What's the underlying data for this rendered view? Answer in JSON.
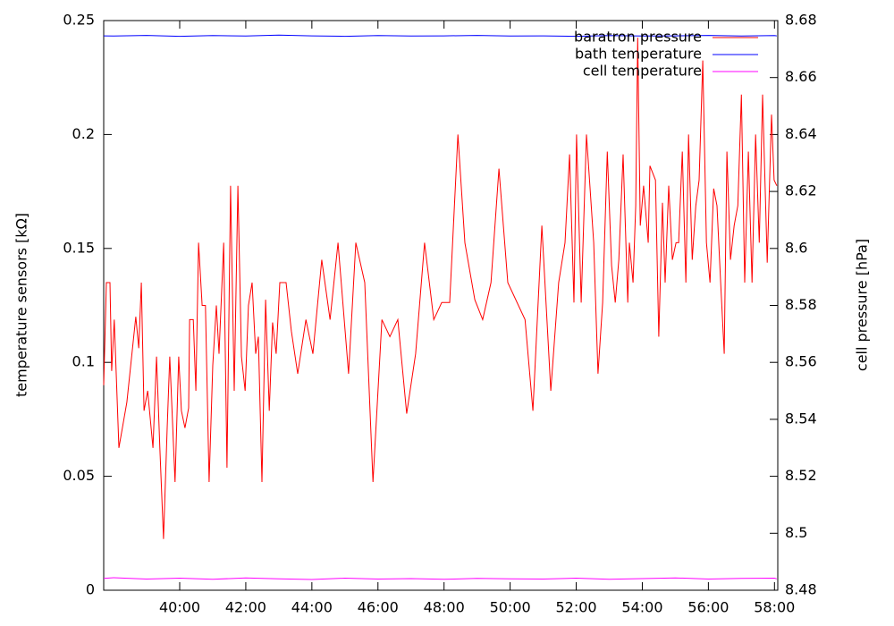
{
  "chart_data": {
    "type": "line",
    "y_label": "temperature sensors [kΩ]",
    "y2_label": "cell pressure [hPa]",
    "xlim": [
      37.7,
      58.1
    ],
    "xticks": [
      {
        "value": 40,
        "label": "40:00"
      },
      {
        "value": 42,
        "label": "42:00"
      },
      {
        "value": 44,
        "label": "44:00"
      },
      {
        "value": 46,
        "label": "46:00"
      },
      {
        "value": 48,
        "label": "48:00"
      },
      {
        "value": 50,
        "label": "50:00"
      },
      {
        "value": 52,
        "label": "52:00"
      },
      {
        "value": 54,
        "label": "54:00"
      },
      {
        "value": 56,
        "label": "56:00"
      },
      {
        "value": 58,
        "label": "58:00"
      }
    ],
    "ylim": [
      0,
      0.25
    ],
    "yticks": [
      0,
      0.05,
      0.1,
      0.15,
      0.2,
      0.25
    ],
    "y2lim": [
      8.48,
      8.68
    ],
    "y2ticks": [
      8.48,
      8.5,
      8.52,
      8.54,
      8.56,
      8.58,
      8.6,
      8.62,
      8.64,
      8.66,
      8.68
    ],
    "legend": "upper right",
    "series": [
      {
        "name": "baratron pressure",
        "color": "#ff0000",
        "axis": "y2",
        "x": [
          37.7,
          37.78,
          37.89,
          37.94,
          38.02,
          38.16,
          38.4,
          38.67,
          38.76,
          38.84,
          38.92,
          39.03,
          39.19,
          39.3,
          39.4,
          39.51,
          39.62,
          39.7,
          39.86,
          39.97,
          40.05,
          40.16,
          40.27,
          40.3,
          40.41,
          40.49,
          40.57,
          40.68,
          40.78,
          40.89,
          41.0,
          41.11,
          41.19,
          41.33,
          41.43,
          41.54,
          41.65,
          41.76,
          41.87,
          41.98,
          42.08,
          42.19,
          42.3,
          42.38,
          42.49,
          42.6,
          42.71,
          42.81,
          42.92,
          43.03,
          43.22,
          43.38,
          43.57,
          43.82,
          44.03,
          44.3,
          44.55,
          44.79,
          45.11,
          45.33,
          45.6,
          45.85,
          46.12,
          46.36,
          46.6,
          46.87,
          47.14,
          47.41,
          47.69,
          47.93,
          48.17,
          48.42,
          48.63,
          48.93,
          49.17,
          49.42,
          49.66,
          49.93,
          50.45,
          50.69,
          50.96,
          51.23,
          51.47,
          51.66,
          51.8,
          51.93,
          52.01,
          52.15,
          52.31,
          52.53,
          52.66,
          52.8,
          52.94,
          53.07,
          53.18,
          53.29,
          53.42,
          53.56,
          53.61,
          53.72,
          53.8,
          53.86,
          53.94,
          54.04,
          54.18,
          54.23,
          54.4,
          54.5,
          54.61,
          54.69,
          54.8,
          54.91,
          55.02,
          55.1,
          55.21,
          55.32,
          55.4,
          55.51,
          55.62,
          55.72,
          55.83,
          55.94,
          56.05,
          56.16,
          56.26,
          56.37,
          56.48,
          56.56,
          56.67,
          56.78,
          56.89,
          57.0,
          57.1,
          57.21,
          57.32,
          57.43,
          57.54,
          57.64,
          57.78,
          57.91,
          57.99,
          58.07
        ],
        "values": [
          8.552,
          8.588,
          8.588,
          8.557,
          8.575,
          8.53,
          8.546,
          8.576,
          8.565,
          8.588,
          8.543,
          8.55,
          8.53,
          8.562,
          8.53,
          8.498,
          8.537,
          8.562,
          8.518,
          8.562,
          8.543,
          8.537,
          8.544,
          8.575,
          8.575,
          8.55,
          8.602,
          8.58,
          8.58,
          8.518,
          8.559,
          8.58,
          8.563,
          8.602,
          8.523,
          8.622,
          8.55,
          8.622,
          8.562,
          8.55,
          8.58,
          8.588,
          8.563,
          8.569,
          8.518,
          8.582,
          8.543,
          8.574,
          8.563,
          8.588,
          8.588,
          8.571,
          8.556,
          8.575,
          8.563,
          8.596,
          8.575,
          8.602,
          8.556,
          8.602,
          8.588,
          8.518,
          8.575,
          8.569,
          8.575,
          8.542,
          8.563,
          8.602,
          8.575,
          8.581,
          8.581,
          8.64,
          8.602,
          8.582,
          8.575,
          8.588,
          8.628,
          8.588,
          8.575,
          8.543,
          8.608,
          8.55,
          8.588,
          8.602,
          8.633,
          8.581,
          8.64,
          8.581,
          8.64,
          8.602,
          8.556,
          8.581,
          8.634,
          8.594,
          8.581,
          8.596,
          8.633,
          8.581,
          8.602,
          8.588,
          8.615,
          8.674,
          8.608,
          8.622,
          8.602,
          8.629,
          8.624,
          8.569,
          8.616,
          8.588,
          8.622,
          8.596,
          8.602,
          8.602,
          8.634,
          8.588,
          8.64,
          8.596,
          8.615,
          8.624,
          8.666,
          8.602,
          8.588,
          8.621,
          8.615,
          8.588,
          8.563,
          8.634,
          8.596,
          8.608,
          8.615,
          8.654,
          8.588,
          8.634,
          8.588,
          8.64,
          8.602,
          8.654,
          8.595,
          8.647,
          8.624,
          8.622
        ]
      },
      {
        "name": "bath temperature",
        "color": "#0000ff",
        "axis": "y",
        "x": [
          37.7,
          38,
          39,
          40,
          41,
          42,
          43,
          44,
          45,
          46,
          47,
          48,
          49,
          50,
          51,
          52,
          53,
          54,
          55,
          56,
          57,
          58,
          58.07
        ],
        "values": [
          0.2433,
          0.2432,
          0.2435,
          0.2431,
          0.2434,
          0.2432,
          0.2436,
          0.2433,
          0.2431,
          0.2434,
          0.2432,
          0.2433,
          0.2435,
          0.2432,
          0.2433,
          0.2431,
          0.2434,
          0.2432,
          0.2433,
          0.2435,
          0.2432,
          0.2434,
          0.2433
        ]
      },
      {
        "name": "cell temperature",
        "color": "#ff00ff",
        "axis": "y",
        "x": [
          37.7,
          38,
          39,
          40,
          41,
          42,
          43,
          44,
          45,
          46,
          47,
          48,
          49,
          50,
          51,
          52,
          53,
          54,
          55,
          56,
          57,
          58,
          58.07
        ],
        "values": [
          0.0052,
          0.0055,
          0.0049,
          0.0053,
          0.0048,
          0.0054,
          0.005,
          0.0047,
          0.0053,
          0.0049,
          0.0051,
          0.0048,
          0.0052,
          0.005,
          0.0049,
          0.0053,
          0.0048,
          0.0051,
          0.0054,
          0.0049,
          0.0052,
          0.0053,
          0.005
        ]
      }
    ]
  }
}
